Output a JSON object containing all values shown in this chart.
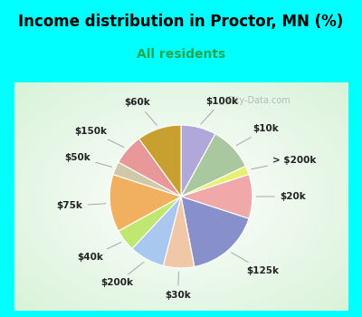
{
  "title": "Income distribution in Proctor, MN (%)",
  "subtitle": "All residents",
  "title_color": "#000000",
  "subtitle_color": "#20a850",
  "bg_cyan": "#00ffff",
  "slices": [
    {
      "label": "$100k",
      "value": 8,
      "color": "#b0a8d8"
    },
    {
      "label": "$10k",
      "value": 10,
      "color": "#aac8a0"
    },
    {
      "label": "> $200k",
      "value": 2,
      "color": "#e8f070"
    },
    {
      "label": "$20k",
      "value": 10,
      "color": "#f0a8a8"
    },
    {
      "label": "$125k",
      "value": 17,
      "color": "#8890cc"
    },
    {
      "label": "$30k",
      "value": 7,
      "color": "#f0c8a8"
    },
    {
      "label": "$200k",
      "value": 8,
      "color": "#a8c8f0"
    },
    {
      "label": "$40k",
      "value": 5,
      "color": "#c0e870"
    },
    {
      "label": "$75k",
      "value": 13,
      "color": "#f0b060"
    },
    {
      "label": "$50k",
      "value": 3,
      "color": "#d0c8a8"
    },
    {
      "label": "$150k",
      "value": 7,
      "color": "#e89898"
    },
    {
      "label": "$60k",
      "value": 10,
      "color": "#c8a030"
    }
  ],
  "watermark": "City-Data.com",
  "label_fontsize": 7.5,
  "title_fontsize": 12,
  "subtitle_fontsize": 10
}
